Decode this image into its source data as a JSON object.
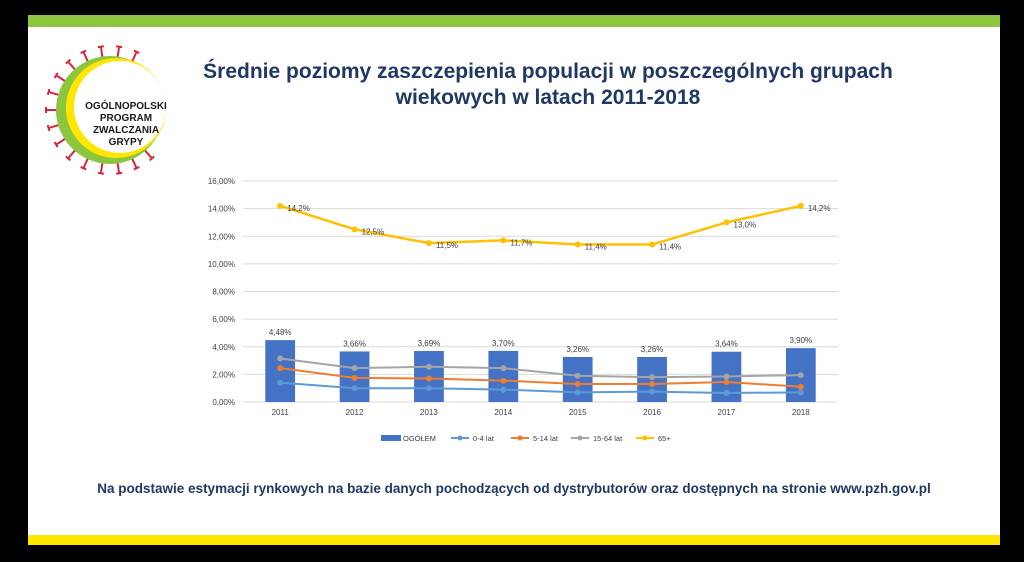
{
  "logo": {
    "lines": [
      "OGÓLNOPOLSKI",
      "PROGRAM",
      "ZWALCZANIA",
      "GRYPY"
    ],
    "ring_color": "#8cc63f",
    "inner_color": "#ffe600",
    "spike_color": "#d7263d"
  },
  "title": {
    "line1": "Średnie poziomy zaszczepienia populacji w poszczególnych grupach",
    "line2": "wiekowych w latach 2011-2018"
  },
  "footer": "Na podstawie estymacji rynkowych na bazie danych pochodzących od dystrybutorów oraz dostępnych na stronie www.pzh.gov.pl",
  "colors": {
    "top_bar": "#8cc63f",
    "bottom_bar": "#ffe600",
    "title": "#1f3864"
  },
  "chart_data": {
    "type": "bar+line",
    "categories": [
      "2011",
      "2012",
      "2013",
      "2014",
      "2015",
      "2016",
      "2017",
      "2018"
    ],
    "ylim": [
      0,
      16
    ],
    "yticks": [
      0,
      2,
      4,
      6,
      8,
      10,
      12,
      14,
      16
    ],
    "ytick_labels": [
      "0,00%",
      "2,00%",
      "4,00%",
      "6,00%",
      "8,00%",
      "10,00%",
      "12,00%",
      "14,00%",
      "16,00%"
    ],
    "grid": true,
    "legend_position": "bottom",
    "bars": {
      "name": "OGÓŁEM",
      "color": "#4472c4",
      "values": [
        4.48,
        3.66,
        3.69,
        3.7,
        3.26,
        3.26,
        3.64,
        3.9
      ],
      "labels": [
        "4,48%",
        "3,66%",
        "3,69%",
        "3,70%",
        "3,26%",
        "3,26%",
        "3,64%",
        "3,90%"
      ]
    },
    "series": [
      {
        "name": "0-4 lat",
        "color": "#5b9bd5",
        "values": [
          1.4,
          1.0,
          1.0,
          0.9,
          0.7,
          0.75,
          0.65,
          0.7
        ]
      },
      {
        "name": "5-14 lat",
        "color": "#ed7d31",
        "values": [
          2.45,
          1.75,
          1.7,
          1.55,
          1.3,
          1.3,
          1.45,
          1.1
        ]
      },
      {
        "name": "15-64 lat",
        "color": "#a5a5a5",
        "values": [
          3.15,
          2.45,
          2.55,
          2.45,
          1.9,
          1.8,
          1.85,
          1.95
        ]
      },
      {
        "name": "65+",
        "color": "#ffc000",
        "values": [
          14.2,
          12.5,
          11.5,
          11.7,
          11.4,
          11.4,
          13.0,
          14.2
        ],
        "labels": [
          "14,2%",
          "12,5%",
          "11,5%",
          "11,7%",
          "11,4%",
          "11,4%",
          "13,0%",
          "14,2%"
        ]
      }
    ]
  }
}
